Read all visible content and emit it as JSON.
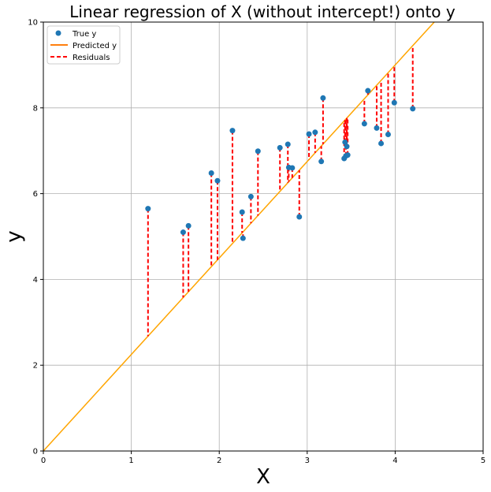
{
  "chart_data": {
    "type": "scatter",
    "title": "Linear regression of X (without intercept!) onto y",
    "xlabel": "X",
    "ylabel": "y",
    "xlim": [
      0,
      5
    ],
    "ylim": [
      0,
      10
    ],
    "xticks": [
      0,
      1,
      2,
      3,
      4,
      5
    ],
    "yticks": [
      0,
      2,
      4,
      6,
      8,
      10
    ],
    "grid": true,
    "legend_position": "top-left",
    "legend": {
      "true_y": "True y",
      "predicted_y": "Predicted y",
      "residuals": "Residuals"
    },
    "regression_slope": 2.25,
    "colors": {
      "points": "#1f77b4",
      "line": "#ffa500",
      "legend_line": "#ff7f0e",
      "residuals": "#ff0000",
      "grid": "#b0b0b0"
    },
    "points": [
      {
        "x": 1.19,
        "y": 5.65
      },
      {
        "x": 1.59,
        "y": 5.1
      },
      {
        "x": 1.65,
        "y": 5.25
      },
      {
        "x": 1.91,
        "y": 6.48
      },
      {
        "x": 1.98,
        "y": 6.3
      },
      {
        "x": 2.15,
        "y": 7.47
      },
      {
        "x": 2.26,
        "y": 5.57
      },
      {
        "x": 2.27,
        "y": 4.96
      },
      {
        "x": 2.36,
        "y": 5.93
      },
      {
        "x": 2.44,
        "y": 6.99
      },
      {
        "x": 2.69,
        "y": 7.07
      },
      {
        "x": 2.78,
        "y": 7.15
      },
      {
        "x": 2.79,
        "y": 6.61
      },
      {
        "x": 2.83,
        "y": 6.6
      },
      {
        "x": 2.91,
        "y": 5.46
      },
      {
        "x": 3.02,
        "y": 7.39
      },
      {
        "x": 3.09,
        "y": 7.43
      },
      {
        "x": 3.16,
        "y": 6.75
      },
      {
        "x": 3.18,
        "y": 8.23
      },
      {
        "x": 3.42,
        "y": 6.82
      },
      {
        "x": 3.43,
        "y": 7.2
      },
      {
        "x": 3.44,
        "y": 6.88
      },
      {
        "x": 3.45,
        "y": 7.1
      },
      {
        "x": 3.46,
        "y": 6.9
      },
      {
        "x": 3.65,
        "y": 7.63
      },
      {
        "x": 3.69,
        "y": 8.4
      },
      {
        "x": 3.79,
        "y": 7.53
      },
      {
        "x": 3.84,
        "y": 7.17
      },
      {
        "x": 3.92,
        "y": 7.38
      },
      {
        "x": 3.99,
        "y": 8.12
      },
      {
        "x": 4.2,
        "y": 7.98
      }
    ]
  }
}
